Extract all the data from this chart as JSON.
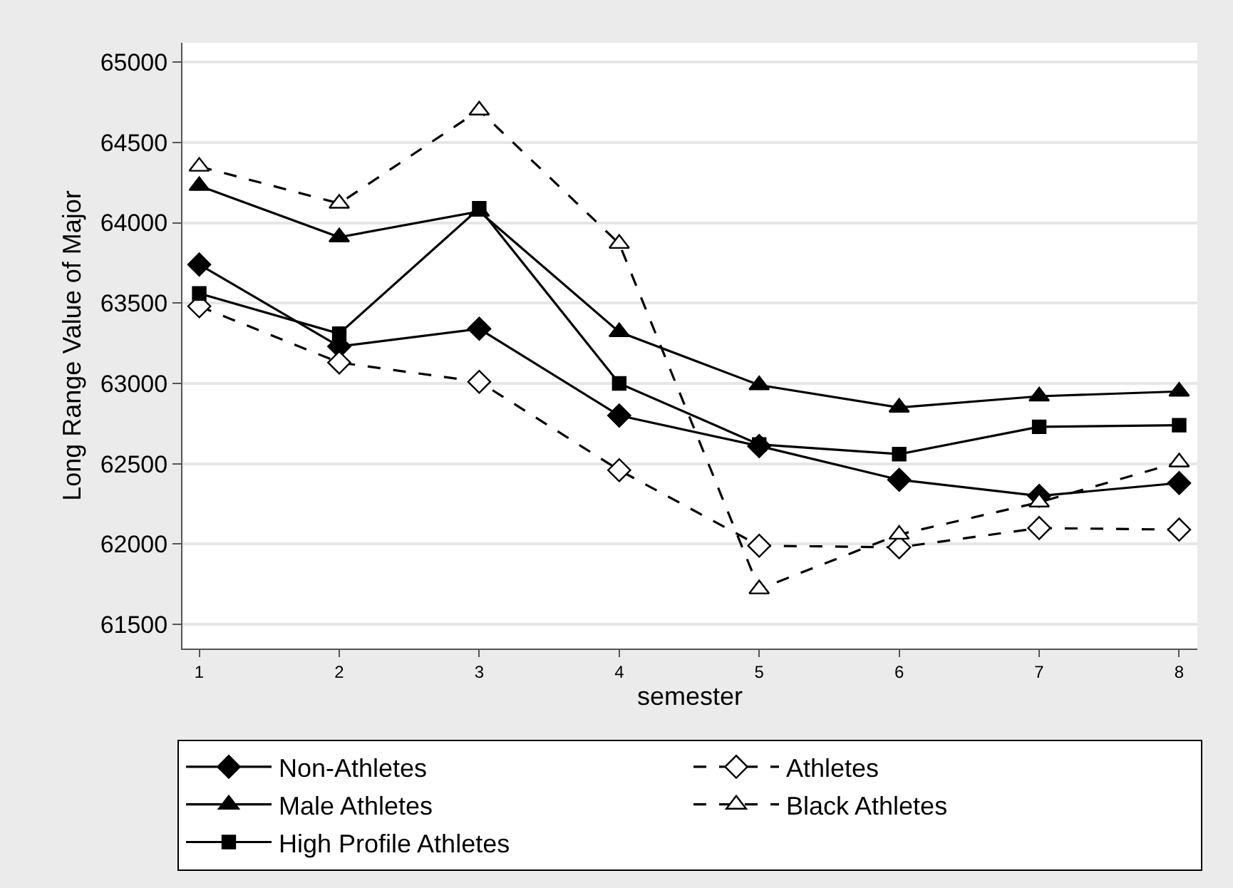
{
  "chart_data": {
    "type": "line",
    "xlabel": "semester",
    "ylabel": "Long Range Value of Major",
    "x": [
      1,
      2,
      3,
      4,
      5,
      6,
      7,
      8
    ],
    "xlim": [
      0.88,
      8.13
    ],
    "xticks": [
      1,
      2,
      3,
      4,
      5,
      6,
      7,
      8
    ],
    "ylim": [
      61350,
      65120
    ],
    "yticks": [
      61500,
      62000,
      62500,
      63000,
      63500,
      64000,
      64500,
      65000
    ],
    "grid": "y",
    "legend": "bottom",
    "series": [
      {
        "name": "Non-Athletes",
        "color": "#000000",
        "marker": "diamond",
        "line_style": "solid",
        "values": [
          63740,
          63230,
          63340,
          62800,
          62610,
          62400,
          62300,
          62380
        ]
      },
      {
        "name": "Athletes",
        "color": "#000000",
        "marker": "diamond",
        "line_style": "dashed",
        "values": [
          63480,
          63130,
          63010,
          62460,
          61990,
          61980,
          62100,
          62090
        ]
      },
      {
        "name": "Male Athletes",
        "color": "#000000",
        "marker": "triangle",
        "line_style": "solid",
        "values": [
          64230,
          63910,
          64070,
          63320,
          62990,
          62850,
          62920,
          62950
        ]
      },
      {
        "name": "Black Athletes",
        "color": "#000000",
        "marker": "triangle",
        "line_style": "dashed",
        "values": [
          64350,
          64120,
          64700,
          63870,
          61720,
          62060,
          62260,
          62510
        ]
      },
      {
        "name": "High Profile Athletes",
        "color": "#000000",
        "marker": "square",
        "line_style": "solid",
        "values": [
          63560,
          63310,
          64090,
          63000,
          62620,
          62560,
          62730,
          62740
        ]
      }
    ]
  }
}
